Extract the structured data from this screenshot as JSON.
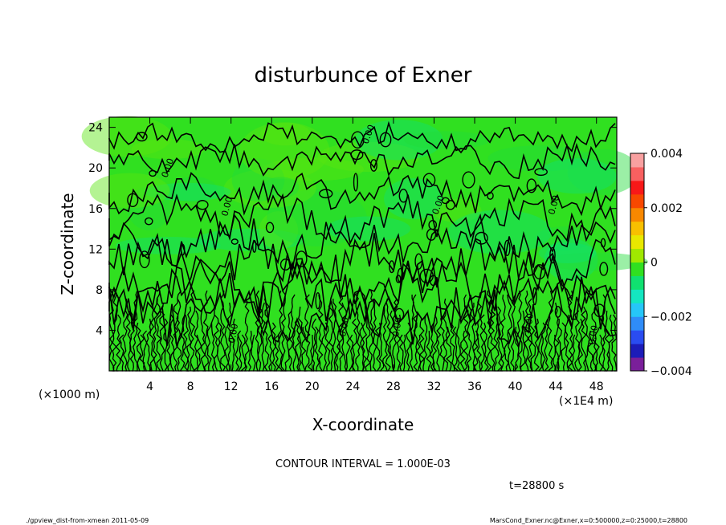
{
  "chart_data": {
    "type": "heatmap",
    "title": "disturbunce of Exner",
    "xlabel": "X-coordinate",
    "ylabel": "Z-coordinate",
    "x_unit": "(×1E4 m)",
    "z_unit": "(×1000 m)",
    "x_ticks": [
      4,
      8,
      12,
      16,
      20,
      24,
      28,
      32,
      36,
      40,
      44,
      48
    ],
    "z_ticks": [
      4,
      8,
      12,
      16,
      20,
      24
    ],
    "xlim": [
      0,
      50
    ],
    "zlim": [
      0,
      25
    ],
    "colorbar": {
      "range": [
        -0.004,
        0.004
      ],
      "tick_labels": [
        "0.004",
        "0.002",
        "0",
        "−0.002",
        "−0.004"
      ],
      "tick_values": [
        0.004,
        0.002,
        0,
        -0.002,
        -0.004
      ],
      "colors": [
        "#7a1f9a",
        "#1c1cb8",
        "#2a4cf0",
        "#2f8cf8",
        "#26c6f8",
        "#14e6c0",
        "#10e070",
        "#30e020",
        "#a0e800",
        "#e8e800",
        "#f8c000",
        "#f88800",
        "#f84800",
        "#f81818",
        "#f86060",
        "#f8a0a0"
      ]
    },
    "contour_interval": "CONTOUR INTERVAL = 1.000E-03",
    "contour_label": "0.00"
  },
  "annotations": {
    "time": "t=28800 s",
    "footer_left": "./gpview_dist-from-xmean  2011-05-09",
    "footer_right": "MarsCond_Exner.nc@Exner,x=0:500000,z=0:25000,t=28800"
  }
}
